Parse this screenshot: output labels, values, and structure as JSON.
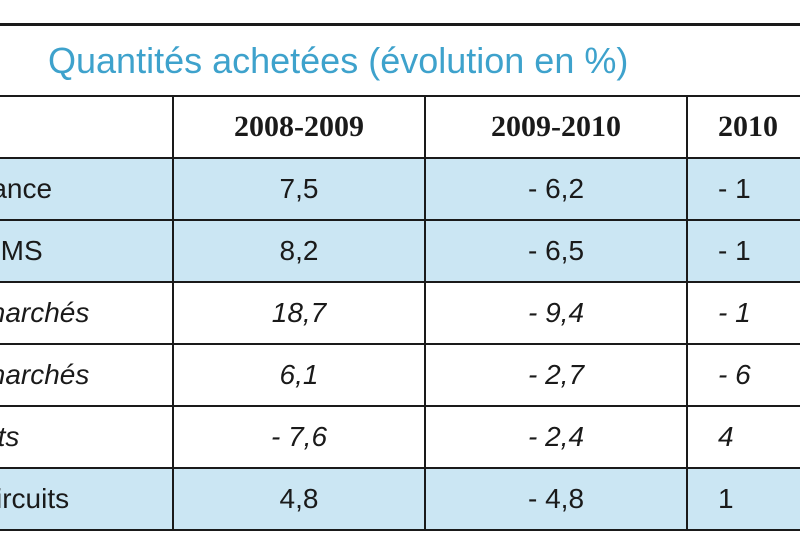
{
  "table": {
    "title": "Quantités achetées (évolution en %)",
    "columns": [
      "",
      "2008-2009",
      "2009-2010",
      "2010"
    ],
    "rows": [
      {
        "label": "rance",
        "values": [
          "7,5",
          "- 6,2",
          "- 1"
        ],
        "shaded": true,
        "italic": false
      },
      {
        "label": "SMS",
        "values": [
          "8,2",
          "- 6,5",
          "- 1"
        ],
        "shaded": true,
        "italic": false
      },
      {
        "label": "marchés",
        "values": [
          "18,7",
          "- 9,4",
          "- 1"
        ],
        "shaded": false,
        "italic": true
      },
      {
        "label": "marchés",
        "values": [
          "6,1",
          "- 2,7",
          "- 6"
        ],
        "shaded": false,
        "italic": true
      },
      {
        "label": "nts",
        "values": [
          "- 7,6",
          "- 2,4",
          "4"
        ],
        "shaded": false,
        "italic": true
      },
      {
        "label": "circuits",
        "values": [
          "4,8",
          "- 4,8",
          "1"
        ],
        "shaded": true,
        "italic": false
      }
    ]
  },
  "colors": {
    "title": "#3ea2cc",
    "shaded_row": "#cbe6f3",
    "border": "#1a1a1a"
  }
}
